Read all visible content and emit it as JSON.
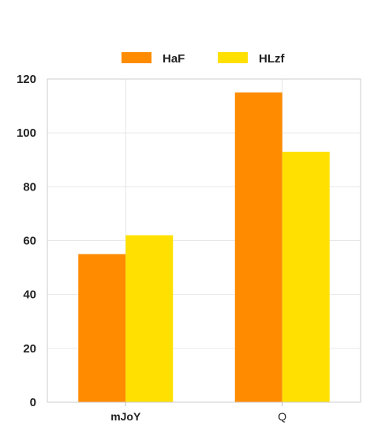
{
  "chart_data": {
    "type": "bar",
    "title": "",
    "xlabel": "",
    "ylabel": "",
    "categories": [
      "mJoY",
      "Q"
    ],
    "series": [
      {
        "name": "HaF",
        "color": "#FF8C00",
        "values": [
          55,
          115
        ]
      },
      {
        "name": "HLzf",
        "color": "#FFE000",
        "values": [
          62,
          93
        ]
      }
    ],
    "ylim": [
      0,
      120
    ],
    "yticks": [
      "0",
      "20",
      "40",
      "60",
      "80",
      "100",
      "120"
    ],
    "grid": true,
    "legend_position": "top-center"
  }
}
